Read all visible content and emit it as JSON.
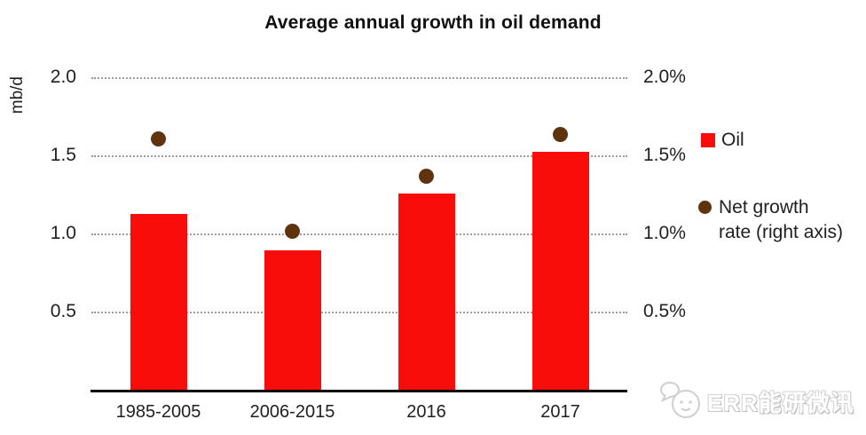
{
  "title": "Average annual growth in oil demand",
  "colors": {
    "bar": "#f90d0b",
    "dot": "#60330f",
    "gridline": "#9a9a9a",
    "axis": "#000000",
    "text": "#1f1f1f"
  },
  "chart_data": {
    "type": "bar",
    "title": "Average annual growth in oil demand",
    "categories": [
      "1985-2005",
      "2006-2015",
      "2016",
      "2017"
    ],
    "series": [
      {
        "name": "Oil",
        "type": "bar",
        "axis": "left",
        "values": [
          1.13,
          0.9,
          1.26,
          1.53
        ]
      },
      {
        "name": "Net growth rate (right axis)",
        "type": "scatter",
        "axis": "right",
        "values": [
          1.61,
          1.02,
          1.37,
          1.64
        ]
      }
    ],
    "left_axis": {
      "label": "mb/d",
      "ticks": [
        "2.0",
        "1.5",
        "1.0",
        "0.5"
      ],
      "tick_values": [
        2.0,
        1.5,
        1.0,
        0.5
      ],
      "min": 0,
      "max": 2.0
    },
    "right_axis": {
      "ticks": [
        "2.0%",
        "1.5%",
        "1.0%",
        "0.5%"
      ],
      "tick_values": [
        2.0,
        1.5,
        1.0,
        0.5
      ],
      "min": 0,
      "max": 2.0
    },
    "grid": "horizontal dotted",
    "legend_position": "right"
  },
  "legend": {
    "oil_label": "Oil",
    "net_growth_line1": "Net growth",
    "net_growth_line2": "rate (right axis)"
  },
  "watermark": {
    "text": "ERR能研微讯",
    "logo_icon": "chat-mascot-icon"
  }
}
